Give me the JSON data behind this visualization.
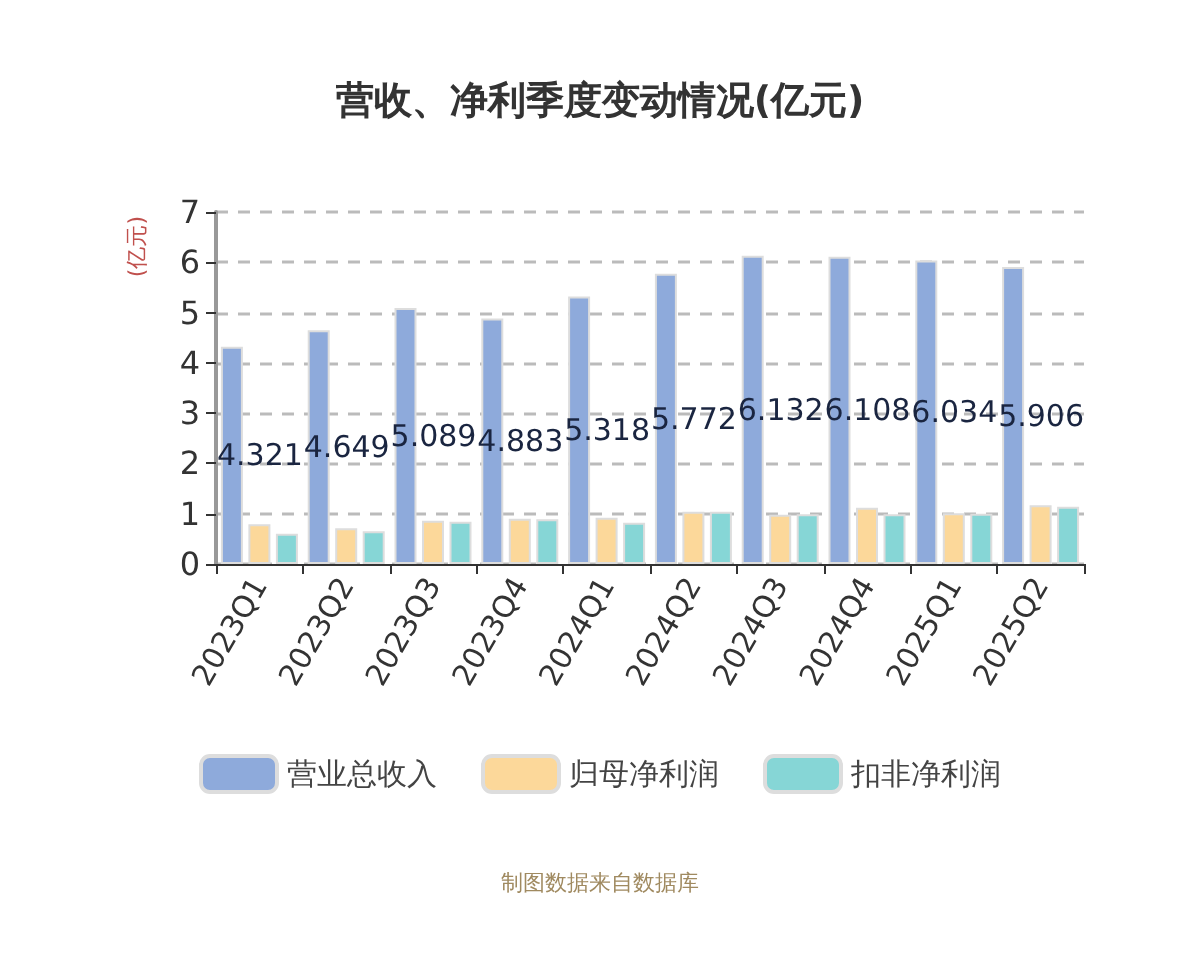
{
  "chart_data": {
    "type": "bar",
    "title": "营收、净利季度变动情况(亿元)",
    "ylabel": "(亿元)",
    "categories": [
      "2023Q1",
      "2023Q2",
      "2023Q3",
      "2023Q4",
      "2024Q1",
      "2024Q2",
      "2024Q3",
      "2024Q4",
      "2025Q1",
      "2025Q2"
    ],
    "series": [
      {
        "name": "营业总收入",
        "color": "#8eaadb",
        "values": [
          4.321,
          4.649,
          5.089,
          4.883,
          5.318,
          5.772,
          6.132,
          6.108,
          6.034,
          5.906
        ],
        "value_labels": [
          "4.321",
          "4.649",
          "5.089",
          "4.883",
          "5.318",
          "5.772",
          "6.132",
          "6.108",
          "6.034",
          "5.906"
        ]
      },
      {
        "name": "归母净利润",
        "color": "#fcd89a",
        "values": [
          0.79,
          0.71,
          0.86,
          0.9,
          0.92,
          1.04,
          0.98,
          1.12,
          1.01,
          1.17
        ]
      },
      {
        "name": "扣非净利润",
        "color": "#86d6d6",
        "values": [
          0.6,
          0.65,
          0.84,
          0.89,
          0.82,
          1.04,
          0.99,
          0.99,
          1.0,
          1.14
        ]
      }
    ],
    "ylim": [
      0,
      7
    ],
    "yticks": [
      0,
      1,
      2,
      3,
      4,
      5,
      6,
      7
    ],
    "grid": "y",
    "legend": "bottom",
    "annotations": [
      "制图数据来自数据库"
    ]
  }
}
